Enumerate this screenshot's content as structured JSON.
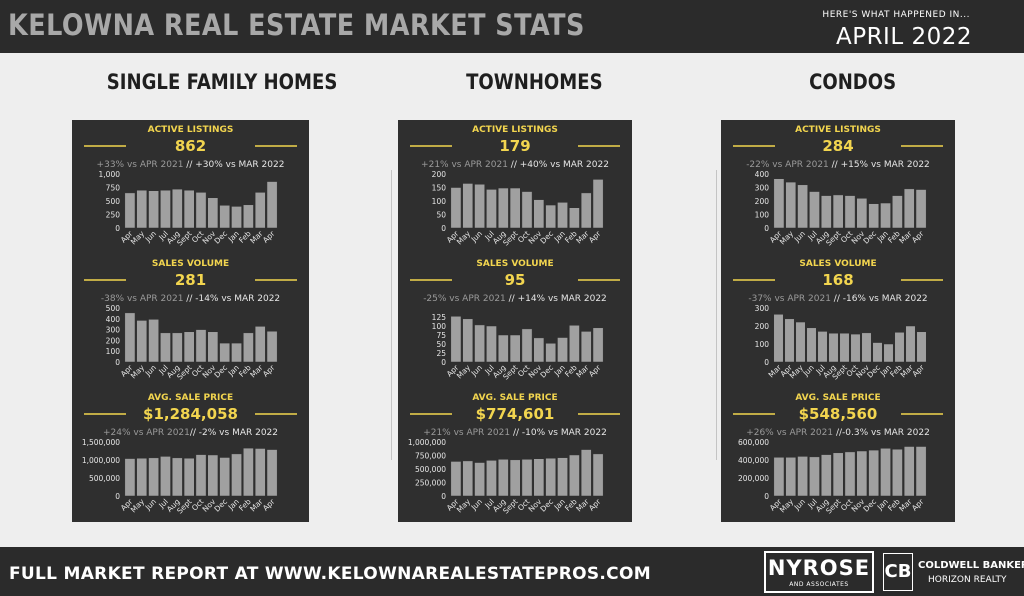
{
  "header": {
    "title": "KELOWNA REAL ESTATE MARKET STATS",
    "subtitle": "HERE'S WHAT HAPPENED IN...",
    "month": "APRIL 2022"
  },
  "columns": [
    {
      "heading": "SINGLE FAMILY HOMES"
    },
    {
      "heading": "TOWNHOMES"
    },
    {
      "heading": "CONDOS"
    }
  ],
  "colors": {
    "accent": "#f2d54f",
    "bar": "#a0a0a0",
    "panel": "#2f2f2f",
    "text_light": "#e6e6e6"
  },
  "chart_data": [
    {
      "panel": 0,
      "type": "bar",
      "label": "ACTIVE LISTINGS",
      "value": "862",
      "change_grey": "+33% vs APR 2021 ",
      "change_white": "// +30% vs MAR 2022",
      "categories": [
        "Apr",
        "May",
        "Jun",
        "Jul",
        "Aug",
        "Sept",
        "Oct",
        "Nov",
        "Dec",
        "Jan",
        "Feb",
        "Mar",
        "Apr"
      ],
      "values": [
        650,
        700,
        690,
        700,
        720,
        700,
        660,
        560,
        420,
        400,
        430,
        660,
        860
      ],
      "ylim": [
        0,
        1000
      ],
      "yticks": [
        0,
        250,
        500,
        750,
        1000
      ],
      "ytick_labels": [
        "0",
        "250",
        "500",
        "750",
        "1,000"
      ]
    },
    {
      "panel": 0,
      "type": "bar",
      "label": "SALES VOLUME",
      "value": "281",
      "change_grey": "-38% vs APR 2021 ",
      "change_white": "// -14% vs MAR 2022",
      "categories": [
        "Apr",
        "May",
        "Jun",
        "Jul",
        "Aug",
        "Sept",
        "Oct",
        "Nov",
        "Dec",
        "Jan",
        "Feb",
        "Mar",
        "Apr"
      ],
      "values": [
        455,
        385,
        395,
        270,
        270,
        280,
        300,
        280,
        175,
        175,
        270,
        330,
        285
      ],
      "ylim": [
        0,
        500
      ],
      "yticks": [
        0,
        100,
        200,
        300,
        400,
        500
      ],
      "ytick_labels": [
        "0",
        "100",
        "200",
        "300",
        "400",
        "500"
      ]
    },
    {
      "panel": 0,
      "type": "bar",
      "label": "AVG. SALE PRICE",
      "value": "$1,284,058",
      "change_grey": "+24% vs APR 2021",
      "change_white": "// -2% vs MAR 2022",
      "categories": [
        "Apr",
        "May",
        "Jun",
        "Jul",
        "Aug",
        "Sept",
        "Oct",
        "Nov",
        "Dec",
        "Jan",
        "Feb",
        "Mar",
        "Apr"
      ],
      "values": [
        1040000,
        1050000,
        1060000,
        1100000,
        1060000,
        1050000,
        1150000,
        1140000,
        1070000,
        1170000,
        1330000,
        1320000,
        1290000
      ],
      "ylim": [
        0,
        1500000
      ],
      "yticks": [
        0,
        500000,
        1000000,
        1500000
      ],
      "ytick_labels": [
        "0",
        "500,000",
        "1,000,000",
        "1,500,000"
      ]
    },
    {
      "panel": 1,
      "type": "bar",
      "label": "ACTIVE LISTINGS",
      "value": "179",
      "change_grey": "+21% vs APR 2021 ",
      "change_white": "// +40% vs MAR 2022",
      "categories": [
        "Apr",
        "May",
        "Jun",
        "Jul",
        "Aug",
        "Sept",
        "Oct",
        "Nov",
        "Dec",
        "Jan",
        "Feb",
        "Mar",
        "Apr"
      ],
      "values": [
        150,
        165,
        162,
        143,
        148,
        148,
        135,
        105,
        85,
        95,
        75,
        130,
        180
      ],
      "ylim": [
        0,
        200
      ],
      "yticks": [
        0,
        50,
        100,
        150,
        200
      ],
      "ytick_labels": [
        "0",
        "50",
        "100",
        "150",
        "200"
      ]
    },
    {
      "panel": 1,
      "type": "bar",
      "label": "SALES VOLUME",
      "value": "95",
      "change_grey": "-25% vs APR 2021 ",
      "change_white": "// +14% vs MAR 2022",
      "categories": [
        "Apr",
        "May",
        "Jun",
        "Jul",
        "Aug",
        "Sept",
        "Oct",
        "Nov",
        "Dec",
        "Jan",
        "Feb",
        "Mar",
        "Apr"
      ],
      "values": [
        127,
        120,
        103,
        100,
        75,
        75,
        92,
        67,
        52,
        68,
        102,
        85,
        95
      ],
      "ylim": [
        0,
        150
      ],
      "yticks": [
        0,
        25,
        50,
        75,
        100,
        125
      ],
      "ytick_labels": [
        "0",
        "25",
        "50",
        "75",
        "100",
        "125"
      ]
    },
    {
      "panel": 1,
      "type": "bar",
      "label": "AVG. SALE PRICE",
      "value": "$774,601",
      "change_grey": "+21% vs APR 2021 ",
      "change_white": "// -10% vs MAR 2022",
      "categories": [
        "Apr",
        "May",
        "Jun",
        "Jul",
        "Aug",
        "Sept",
        "Oct",
        "Nov",
        "Dec",
        "Jan",
        "Feb",
        "Mar",
        "Apr"
      ],
      "values": [
        640000,
        650000,
        620000,
        660000,
        680000,
        670000,
        680000,
        690000,
        700000,
        710000,
        760000,
        860000,
        780000
      ],
      "ylim": [
        0,
        1000000
      ],
      "yticks": [
        0,
        250000,
        500000,
        750000,
        1000000
      ],
      "ytick_labels": [
        "0",
        "250,000",
        "500,000",
        "750,000",
        "1,000,000"
      ]
    },
    {
      "panel": 2,
      "type": "bar",
      "label": "ACTIVE LISTINGS",
      "value": "284",
      "change_grey": "-22% vs APR 2021 ",
      "change_white": "// +15% vs MAR 2022",
      "categories": [
        "Apr",
        "May",
        "Jun",
        "Jul",
        "Aug",
        "Sept",
        "Oct",
        "Nov",
        "Dec",
        "Jan",
        "Feb",
        "Mar",
        "Apr"
      ],
      "values": [
        365,
        340,
        320,
        270,
        240,
        245,
        240,
        220,
        180,
        185,
        240,
        290,
        285
      ],
      "ylim": [
        0,
        400
      ],
      "yticks": [
        0,
        100,
        200,
        300,
        400
      ],
      "ytick_labels": [
        "0",
        "100",
        "200",
        "300",
        "400"
      ]
    },
    {
      "panel": 2,
      "type": "bar",
      "label": "SALES VOLUME",
      "value": "168",
      "change_grey": "-37% vs APR 2021 ",
      "change_white": "// -16% vs MAR 2022",
      "categories": [
        "Mar",
        "Apr",
        "May",
        "Jun",
        "Jul",
        "Aug",
        "Sept",
        "Oct",
        "Nov",
        "Dec",
        "Jan",
        "Feb",
        "Mar",
        "Apr"
      ],
      "values": [
        265,
        240,
        222,
        190,
        170,
        160,
        160,
        155,
        162,
        108,
        100,
        165,
        200,
        168
      ],
      "ylim": [
        0,
        300
      ],
      "yticks": [
        0,
        100,
        200,
        300
      ],
      "ytick_labels": [
        "0",
        "100",
        "200",
        "300"
      ]
    },
    {
      "panel": 2,
      "type": "bar",
      "label": "AVG. SALE PRICE",
      "value": "$548,560",
      "change_grey": "+26% vs APR 2021 ",
      "change_white": "//-0.3% vs MAR 2022",
      "categories": [
        "Apr",
        "May",
        "Jun",
        "Jul",
        "Aug",
        "Sept",
        "Oct",
        "Nov",
        "Dec",
        "Jan",
        "Feb",
        "Mar",
        "Apr"
      ],
      "values": [
        430000,
        430000,
        440000,
        435000,
        460000,
        480000,
        490000,
        500000,
        510000,
        530000,
        520000,
        550000,
        550000
      ],
      "ylim": [
        0,
        600000
      ],
      "yticks": [
        0,
        200000,
        400000,
        600000
      ],
      "ytick_labels": [
        "0",
        "200,000",
        "400,000",
        "600,000"
      ]
    }
  ],
  "footer": {
    "text": "FULL MARKET REPORT AT WWW.KELOWNAREALESTATEPROS.COM",
    "logo1": "NYROSE",
    "logo1_sub": "AND ASSOCIATES",
    "logo2_mark": "CB",
    "logo2_name": "COLDWELL BANKER",
    "logo2_sub": "HORIZON REALTY"
  }
}
